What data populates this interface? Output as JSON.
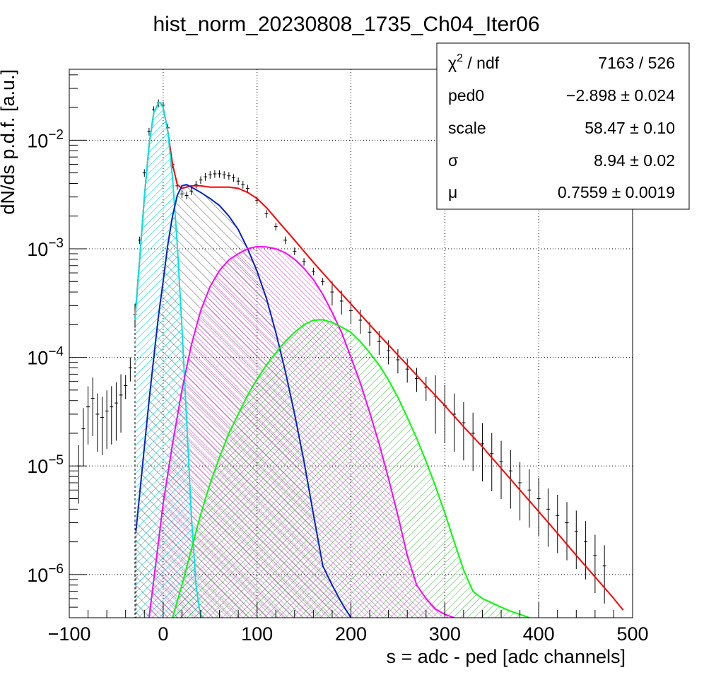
{
  "chart_data": {
    "type": "line",
    "title": "hist_norm_20230808_1735_Ch04_Iter06",
    "xlabel": "s = adc - ped [adc channels]",
    "ylabel": "dN/ds p.d.f. [a.u.]",
    "xlim": [
      -100,
      500
    ],
    "ylim": [
      4e-07,
      0.045
    ],
    "yscale": "log",
    "grid": true,
    "x_ticks": [
      -100,
      0,
      100,
      200,
      300,
      400,
      500
    ],
    "x_tick_labels": [
      "−100",
      "0",
      "100",
      "200",
      "300",
      "400",
      "500"
    ],
    "y_ticks": [
      1e-06,
      1e-05,
      0.0001,
      0.001,
      0.01
    ],
    "y_tick_labels": [
      {
        "base": "10",
        "exp": "−6"
      },
      {
        "base": "10",
        "exp": "−5"
      },
      {
        "base": "10",
        "exp": "−4"
      },
      {
        "base": "10",
        "exp": "−3"
      },
      {
        "base": "10",
        "exp": "−2"
      }
    ],
    "stats_box": {
      "placement": "top-right",
      "rows": [
        {
          "label_base": "χ",
          "label_sup": "2",
          "label_rest": " / ndf",
          "value": "7163 / 526"
        },
        {
          "label_base": "ped0",
          "label_sup": "",
          "label_rest": "",
          "value": "−2.898 ± 0.024"
        },
        {
          "label_base": "scale",
          "label_sup": "",
          "label_rest": "",
          "value": "58.47 ± 0.10"
        },
        {
          "label_base": "σ",
          "label_sup": "",
          "label_rest": "",
          "value": "8.94 ± 0.02"
        },
        {
          "label_base": "μ",
          "label_sup": "",
          "label_rest": "",
          "value": "0.7559 ± 0.0019"
        }
      ]
    },
    "series": [
      {
        "name": "",
        "kind": "histogram-errorbars",
        "color": "#000000",
        "x": [
          -90,
          -85,
          -80,
          -75,
          -70,
          -65,
          -60,
          -55,
          -50,
          -45,
          -40,
          -35,
          -30,
          -25,
          -20,
          -15,
          -10,
          -5,
          0,
          5,
          10,
          15,
          20,
          25,
          30,
          35,
          40,
          45,
          50,
          55,
          60,
          65,
          70,
          75,
          80,
          85,
          90,
          100,
          110,
          120,
          130,
          140,
          150,
          160,
          170,
          180,
          190,
          200,
          210,
          220,
          230,
          240,
          250,
          260,
          270,
          280,
          290,
          300,
          310,
          320,
          330,
          340,
          350,
          360,
          370,
          380,
          390,
          400,
          410,
          420,
          430,
          440,
          450,
          460,
          470
        ],
        "y": [
          1e-05,
          2.2e-05,
          3.5e-05,
          4.2e-05,
          3e-05,
          2.8e-05,
          3.2e-05,
          3.5e-05,
          3.8e-05,
          4.5e-05,
          5.5e-05,
          8e-05,
          0.00025,
          0.0012,
          0.005,
          0.012,
          0.019,
          0.022,
          0.021,
          0.013,
          0.006,
          0.0038,
          0.0032,
          0.0031,
          0.0034,
          0.0039,
          0.0043,
          0.0046,
          0.0048,
          0.0049,
          0.0049,
          0.0048,
          0.0047,
          0.0045,
          0.0042,
          0.0039,
          0.0036,
          0.0028,
          0.0021,
          0.0016,
          0.0012,
          0.00095,
          0.00076,
          0.00062,
          0.0005,
          0.0004,
          0.00033,
          0.00027,
          0.00022,
          0.00017,
          0.00014,
          0.000115,
          9.5e-05,
          7.8e-05,
          6.4e-05,
          5.3e-05,
          4.4e-05,
          3.6e-05,
          3e-05,
          2.5e-05,
          2e-05,
          1.6e-05,
          1.3e-05,
          1.1e-05,
          9e-06,
          7e-06,
          6e-06,
          5e-06,
          4e-06,
          3.5e-06,
          3e-06,
          2.5e-06,
          2e-06,
          1.5e-06,
          1.2e-06
        ]
      },
      {
        "name": "",
        "kind": "fit-total",
        "color": "#ff0000",
        "x": [
          -30,
          -25,
          -20,
          -15,
          -10,
          -5,
          -3,
          0,
          5,
          10,
          15,
          20,
          25,
          30,
          40,
          50,
          60,
          70,
          80,
          90,
          100,
          110,
          120,
          140,
          160,
          180,
          200,
          220,
          240,
          260,
          280,
          300,
          320,
          340,
          360,
          380,
          400,
          420,
          440,
          460,
          480,
          490
        ],
        "y": [
          0.00023,
          0.0008,
          0.003,
          0.009,
          0.018,
          0.022,
          0.0222,
          0.02,
          0.012,
          0.006,
          0.0039,
          0.0036,
          0.0037,
          0.0038,
          0.0038,
          0.0037,
          0.0037,
          0.0037,
          0.0036,
          0.0033,
          0.0029,
          0.0024,
          0.0019,
          0.0012,
          0.00075,
          0.00048,
          0.00031,
          0.0002,
          0.00013,
          8.5e-05,
          5.5e-05,
          3.6e-05,
          2.3e-05,
          1.5e-05,
          9.5e-06,
          6e-06,
          3.8e-06,
          2.4e-06,
          1.5e-06,
          9.5e-07,
          6e-07,
          4.7e-07
        ]
      },
      {
        "name": "",
        "kind": "fit-component",
        "color": "#00e5e5",
        "fill": "#00d8d8",
        "x": [
          -30,
          -25,
          -20,
          -15,
          -10,
          -5,
          -3,
          0,
          5,
          10,
          15,
          20,
          25,
          30,
          35,
          40
        ],
        "y": [
          0.00022,
          0.0008,
          0.003,
          0.009,
          0.018,
          0.022,
          0.0222,
          0.02,
          0.012,
          0.0045,
          0.0011,
          0.00019,
          2.7e-05,
          3.5e-06,
          8e-07,
          3.5e-07
        ]
      },
      {
        "name": "",
        "kind": "fit-component",
        "color": "#0022cc",
        "fill": "#000000",
        "x": [
          -29,
          -25,
          -20,
          -15,
          -10,
          -5,
          0,
          5,
          10,
          15,
          20,
          25,
          30,
          40,
          50,
          60,
          70,
          80,
          90,
          100,
          110,
          120,
          130,
          140,
          150,
          160,
          170,
          180,
          190,
          200
        ],
        "y": [
          2.5e-06,
          5.5e-06,
          1.5e-05,
          4e-05,
          0.0001,
          0.00024,
          0.0005,
          0.0011,
          0.002,
          0.0031,
          0.0038,
          0.0039,
          0.0037,
          0.0033,
          0.0029,
          0.0025,
          0.002,
          0.0015,
          0.001,
          0.00062,
          0.00035,
          0.00017,
          7.5e-05,
          3e-05,
          1.1e-05,
          3.6e-06,
          1.2e-06,
          8e-07,
          5.5e-07,
          4e-07
        ]
      },
      {
        "name": "",
        "kind": "fit-component",
        "color": "#ff00ff",
        "fill": "#cc00cc",
        "x": [
          -15,
          -10,
          -5,
          0,
          10,
          20,
          30,
          40,
          50,
          60,
          70,
          80,
          90,
          100,
          110,
          120,
          130,
          140,
          150,
          160,
          170,
          180,
          190,
          200,
          210,
          220,
          230,
          240,
          250,
          260,
          270,
          280,
          290,
          300,
          310
        ],
        "y": [
          4e-07,
          9e-07,
          2e-06,
          4.5e-06,
          1.6e-05,
          5e-05,
          0.00013,
          0.00027,
          0.00045,
          0.00063,
          0.00079,
          0.0009,
          0.001,
          0.00105,
          0.00104,
          0.001,
          0.00092,
          0.0008,
          0.00066,
          0.00052,
          0.00038,
          0.00026,
          0.00017,
          0.0001,
          5.8e-05,
          3.1e-05,
          1.6e-05,
          7.7e-06,
          3.5e-06,
          1.5e-06,
          8e-07,
          6e-07,
          4.8e-07,
          4.3e-07,
          4e-07
        ]
      },
      {
        "name": "",
        "kind": "fit-component",
        "color": "#00ff00",
        "fill": "#00aa00",
        "x": [
          10,
          20,
          30,
          40,
          50,
          60,
          70,
          80,
          90,
          100,
          110,
          120,
          130,
          140,
          150,
          160,
          170,
          180,
          190,
          200,
          210,
          220,
          230,
          240,
          250,
          260,
          270,
          280,
          290,
          300,
          310,
          320,
          330,
          340,
          350,
          360,
          370,
          380,
          390
        ],
        "y": [
          4e-07,
          8e-07,
          1.7e-06,
          3.6e-06,
          6.9e-06,
          1.2e-05,
          2e-05,
          3e-05,
          4.5e-05,
          6.3e-05,
          8.5e-05,
          0.00011,
          0.00014,
          0.00017,
          0.0002,
          0.00022,
          0.000222,
          0.00021,
          0.00019,
          0.00017,
          0.00014,
          0.00011,
          8.5e-05,
          6.2e-05,
          4.3e-05,
          2.8e-05,
          1.8e-05,
          1.1e-05,
          6.5e-06,
          3.7e-06,
          2e-06,
          1.1e-06,
          7e-07,
          6e-07,
          5.5e-07,
          5e-07,
          4.6e-07,
          4.3e-07,
          4e-07
        ]
      }
    ]
  }
}
